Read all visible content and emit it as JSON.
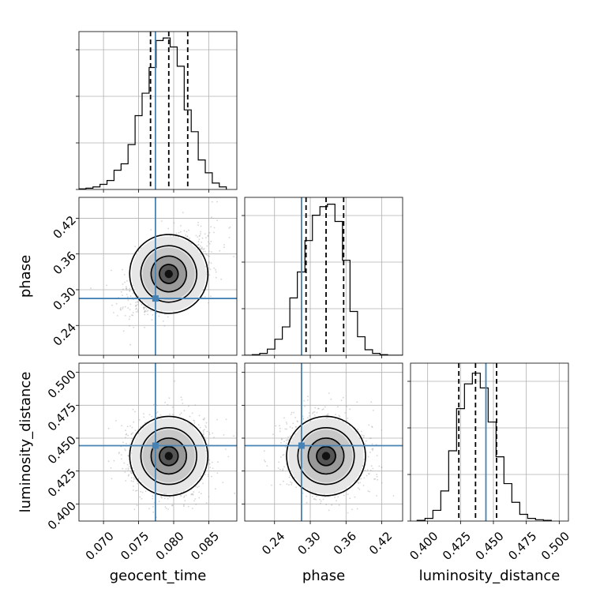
{
  "chart_data": {
    "type": "corner",
    "parameters": [
      {
        "key": "geocent_time",
        "label": "geocent_time",
        "range": [
          0.0665,
          0.089
        ],
        "ticks": [
          0.07,
          0.075,
          0.08,
          0.085
        ],
        "tick_labels": [
          "0.070",
          "0.075",
          "0.080",
          "0.085"
        ],
        "truth": 0.0774,
        "quantiles": [
          0.0767,
          0.0793,
          0.082
        ],
        "histogram": {
          "bin_edges": [
            0.0665,
            0.0675,
            0.0685,
            0.0695,
            0.0705,
            0.0715,
            0.0725,
            0.0735,
            0.0745,
            0.0755,
            0.0765,
            0.0775,
            0.0785,
            0.0795,
            0.0805,
            0.0815,
            0.0825,
            0.0835,
            0.0845,
            0.0855,
            0.0865,
            0.0875
          ],
          "counts": [
            1,
            2,
            4,
            8,
            14,
            30,
            40,
            70,
            115,
            150,
            190,
            232,
            236,
            222,
            192,
            124,
            90,
            46,
            26,
            10,
            4
          ]
        },
        "hist_ylim": [
          0,
          246
        ]
      },
      {
        "key": "phase",
        "label": "phase",
        "range": [
          0.19,
          0.455
        ],
        "ticks": [
          0.24,
          0.3,
          0.36,
          0.42
        ],
        "tick_labels": [
          "0.24",
          "0.30",
          "0.36",
          "0.42"
        ],
        "truth": 0.2853,
        "quantiles": [
          0.2929,
          0.3265,
          0.356
        ],
        "histogram": {
          "bin_edges": [
            0.19,
            0.2026,
            0.2152,
            0.2279,
            0.2405,
            0.2531,
            0.2657,
            0.2783,
            0.291,
            0.3036,
            0.3162,
            0.3288,
            0.3414,
            0.354,
            0.3667,
            0.3793,
            0.3919,
            0.4045,
            0.4171,
            0.4298,
            0.4424,
            0.455
          ],
          "counts": [
            0,
            1,
            3,
            10,
            26,
            46,
            93,
            135,
            186,
            227,
            241,
            245,
            217,
            154,
            71,
            30,
            9,
            3,
            1,
            0,
            0
          ]
        },
        "hist_ylim": [
          0,
          256
        ]
      },
      {
        "key": "luminosity_distance",
        "label": "luminosity_distance",
        "range": [
          0.387,
          0.507
        ],
        "ticks": [
          0.4,
          0.425,
          0.45,
          0.475,
          0.5
        ],
        "tick_labels": [
          "0.400",
          "0.425",
          "0.450",
          "0.475",
          "0.500"
        ],
        "truth": 0.4443,
        "quantiles": [
          0.4237,
          0.4364,
          0.4524
        ],
        "histogram": {
          "bin_edges": [
            0.392,
            0.398,
            0.404,
            0.41,
            0.416,
            0.422,
            0.428,
            0.434,
            0.44,
            0.446,
            0.452,
            0.458,
            0.464,
            0.47,
            0.476,
            0.482,
            0.488,
            0.494
          ],
          "counts": [
            1,
            4,
            16,
            45,
            105,
            168,
            205,
            221,
            199,
            148,
            96,
            56,
            28,
            10,
            4,
            2,
            1
          ]
        },
        "hist_ylim": [
          0,
          236
        ]
      }
    ],
    "truth_color": "#4682b4",
    "sample_color": "#a0a0a0",
    "grid": true
  }
}
